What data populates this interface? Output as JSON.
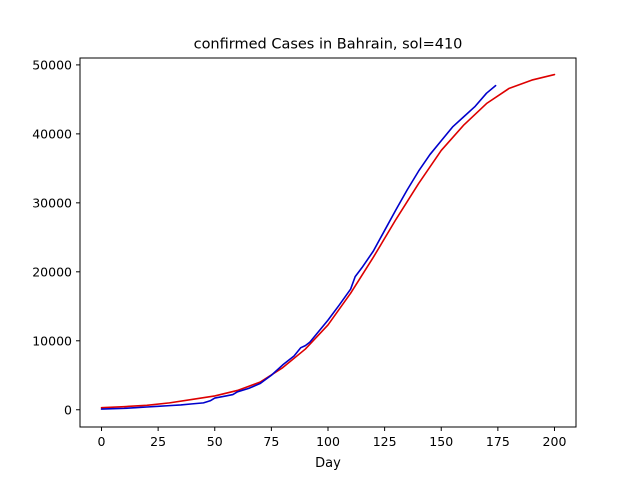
{
  "chart_data": {
    "type": "line",
    "title": "confirmed Cases in Bahrain, sol=410",
    "xlabel": "Day",
    "ylabel": "",
    "xlim": [
      -9.5,
      209.5
    ],
    "ylim": [
      -2500,
      51000
    ],
    "xticks": [
      0,
      25,
      50,
      75,
      100,
      125,
      150,
      175,
      200
    ],
    "yticks": [
      0,
      10000,
      20000,
      30000,
      40000,
      50000
    ],
    "grid": false,
    "legend": "none",
    "series": [
      {
        "color": "#0000cc",
        "x": [
          0,
          5,
          10,
          15,
          20,
          25,
          30,
          35,
          40,
          45,
          48,
          50,
          55,
          58,
          60,
          65,
          70,
          75,
          80,
          85,
          88,
          90,
          92,
          95,
          100,
          105,
          110,
          112,
          115,
          120,
          125,
          130,
          135,
          140,
          145,
          150,
          155,
          160,
          165,
          170,
          174
        ],
        "y": [
          100,
          150,
          200,
          300,
          400,
          500,
          600,
          700,
          850,
          1000,
          1300,
          1700,
          2000,
          2200,
          2600,
          3100,
          3800,
          5000,
          6500,
          7800,
          9000,
          9300,
          9800,
          11000,
          13000,
          15200,
          17500,
          19300,
          20600,
          23000,
          26000,
          29000,
          31900,
          34600,
          37000,
          39000,
          41000,
          42500,
          44000,
          45900,
          47000
        ]
      },
      {
        "color": "#dd0000",
        "x": [
          0,
          10,
          20,
          30,
          40,
          50,
          60,
          70,
          80,
          90,
          100,
          110,
          120,
          130,
          140,
          150,
          160,
          170,
          180,
          190,
          200
        ],
        "y": [
          300,
          450,
          650,
          1000,
          1500,
          2000,
          2800,
          4000,
          6100,
          8800,
          12300,
          16900,
          22100,
          27600,
          32800,
          37600,
          41300,
          44400,
          46600,
          47800,
          48600
        ]
      }
    ]
  }
}
